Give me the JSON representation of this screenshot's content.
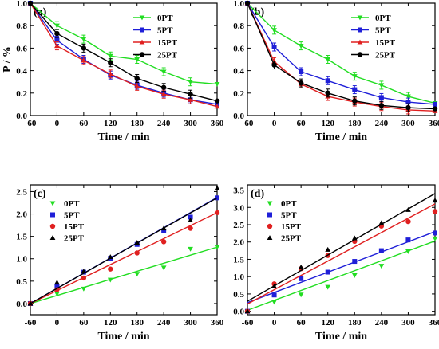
{
  "colors": {
    "0PT": "#22dd22",
    "5PT": "#1f1fd8",
    "15PT": "#e02020",
    "25PT": "#000000"
  },
  "chart_data": [
    {
      "panel": "(a)",
      "type": "line",
      "xlabel": "Time / min",
      "ylabel": "P / %",
      "xticks": [
        -60,
        0,
        60,
        120,
        180,
        240,
        300,
        360
      ],
      "yticks": [
        0.0,
        0.2,
        0.4,
        0.6,
        0.8,
        1.0
      ],
      "ytick_labels": [
        "0.0",
        "0.2",
        "0.4",
        "0.6",
        "0.8",
        "1.0"
      ],
      "xlim": [
        -60,
        360
      ],
      "ylim": [
        0.0,
        1.0
      ],
      "legend_position": "top-right",
      "x": [
        -60,
        0,
        60,
        120,
        180,
        240,
        300,
        360
      ],
      "series": [
        {
          "name": "0PT",
          "marker": "tri-down",
          "values": [
            1.0,
            0.8,
            0.68,
            0.53,
            0.5,
            0.39,
            0.3,
            0.28
          ]
        },
        {
          "name": "5PT",
          "marker": "square",
          "values": [
            1.0,
            0.67,
            0.5,
            0.36,
            0.27,
            0.2,
            0.14,
            0.1
          ]
        },
        {
          "name": "15PT",
          "marker": "tri-up",
          "values": [
            1.0,
            0.62,
            0.49,
            0.37,
            0.26,
            0.19,
            0.14,
            0.08
          ]
        },
        {
          "name": "25PT",
          "marker": "circle",
          "values": [
            1.0,
            0.73,
            0.6,
            0.47,
            0.33,
            0.25,
            0.19,
            0.13
          ]
        }
      ]
    },
    {
      "panel": "(b)",
      "type": "line",
      "xlabel": "Time / min",
      "ylabel": "",
      "xticks": [
        -60,
        0,
        60,
        120,
        180,
        240,
        300,
        360
      ],
      "yticks": [
        0.0,
        0.2,
        0.4,
        0.6,
        0.8,
        1.0
      ],
      "ytick_labels": [
        "0.0",
        "0.2",
        "0.4",
        "0.6",
        "0.8",
        "1.0"
      ],
      "xlim": [
        -60,
        360
      ],
      "ylim": [
        0.0,
        1.0
      ],
      "legend_position": "top-right",
      "x": [
        -60,
        0,
        60,
        120,
        180,
        240,
        300,
        360
      ],
      "series": [
        {
          "name": "0PT",
          "marker": "tri-down",
          "values": [
            1.0,
            0.76,
            0.62,
            0.5,
            0.35,
            0.27,
            0.17,
            0.11
          ]
        },
        {
          "name": "5PT",
          "marker": "square",
          "values": [
            1.0,
            0.61,
            0.39,
            0.31,
            0.23,
            0.16,
            0.12,
            0.1
          ]
        },
        {
          "name": "15PT",
          "marker": "tri-up",
          "values": [
            1.0,
            0.48,
            0.28,
            0.17,
            0.12,
            0.08,
            0.05,
            0.04
          ]
        },
        {
          "name": "25PT",
          "marker": "circle",
          "values": [
            1.0,
            0.45,
            0.29,
            0.2,
            0.13,
            0.09,
            0.07,
            0.06
          ]
        }
      ]
    },
    {
      "panel": "(c)",
      "type": "scatter",
      "xlabel": "Time / min",
      "ylabel": "",
      "xticks": [
        -60,
        0,
        60,
        120,
        180,
        240,
        300,
        360
      ],
      "yticks": [
        0.0,
        0.5,
        1.0,
        1.5,
        2.0,
        2.5
      ],
      "ytick_labels": [
        "0.0",
        "0.5",
        "1.0",
        "1.5",
        "2.0",
        "2.5"
      ],
      "xlim": [
        -60,
        360
      ],
      "ylim": [
        -0.25,
        2.65
      ],
      "legend_position": "top-left",
      "x": [
        -60,
        0,
        60,
        120,
        180,
        240,
        300,
        360
      ],
      "series": [
        {
          "name": "0PT",
          "marker": "tri-down",
          "values": [
            0.0,
            0.22,
            0.33,
            0.53,
            0.66,
            0.8,
            1.22,
            1.26
          ],
          "fit": [
            0.0,
            1.26
          ]
        },
        {
          "name": "5PT",
          "marker": "square",
          "values": [
            0.0,
            0.38,
            0.7,
            1.01,
            1.32,
            1.62,
            1.93,
            2.36
          ],
          "fit": [
            0.0,
            2.37
          ]
        },
        {
          "name": "15PT",
          "marker": "circle",
          "values": [
            0.0,
            0.31,
            0.57,
            0.77,
            1.13,
            1.38,
            1.68,
            2.03
          ],
          "fit": [
            0.0,
            2.03
          ]
        },
        {
          "name": "25PT",
          "marker": "tri-up",
          "values": [
            0.0,
            0.47,
            0.72,
            1.04,
            1.36,
            1.68,
            1.86,
            2.58
          ],
          "fit": [
            0.0,
            2.36
          ]
        }
      ]
    },
    {
      "panel": "(d)",
      "type": "scatter",
      "xlabel": "Time / min",
      "ylabel": "",
      "xticks": [
        -60,
        0,
        60,
        120,
        180,
        240,
        300,
        360
      ],
      "yticks": [
        0.0,
        0.5,
        1.0,
        1.5,
        2.0,
        2.5,
        3.0,
        3.5
      ],
      "ytick_labels": [
        "0.0",
        "0.5",
        "1.0",
        "1.5",
        "2.0",
        "2.5",
        "3.0",
        "3.5"
      ],
      "xlim": [
        -60,
        360
      ],
      "ylim": [
        -0.1,
        3.65
      ],
      "legend_position": "top-left",
      "x": [
        -60,
        0,
        60,
        120,
        180,
        240,
        300,
        360
      ],
      "series": [
        {
          "name": "0PT",
          "marker": "tri-down",
          "values": [
            0.0,
            0.27,
            0.48,
            0.7,
            1.04,
            1.31,
            1.73,
            2.1
          ],
          "fit": [
            0.03,
            2.03
          ]
        },
        {
          "name": "5PT",
          "marker": "square",
          "values": [
            0.0,
            0.47,
            0.94,
            1.13,
            1.44,
            1.75,
            2.06,
            2.26
          ],
          "fit": [
            0.25,
            2.3
          ]
        },
        {
          "name": "15PT",
          "marker": "circle",
          "values": [
            0.0,
            0.79,
            1.23,
            1.61,
            2.02,
            2.46,
            2.59,
            2.88
          ],
          "fit": [
            0.21,
            3.1
          ]
        },
        {
          "name": "25PT",
          "marker": "tri-up",
          "values": [
            0.0,
            0.72,
            1.27,
            1.78,
            2.11,
            2.55,
            2.93,
            3.2
          ],
          "fit": [
            0.29,
            3.4
          ]
        }
      ]
    }
  ]
}
